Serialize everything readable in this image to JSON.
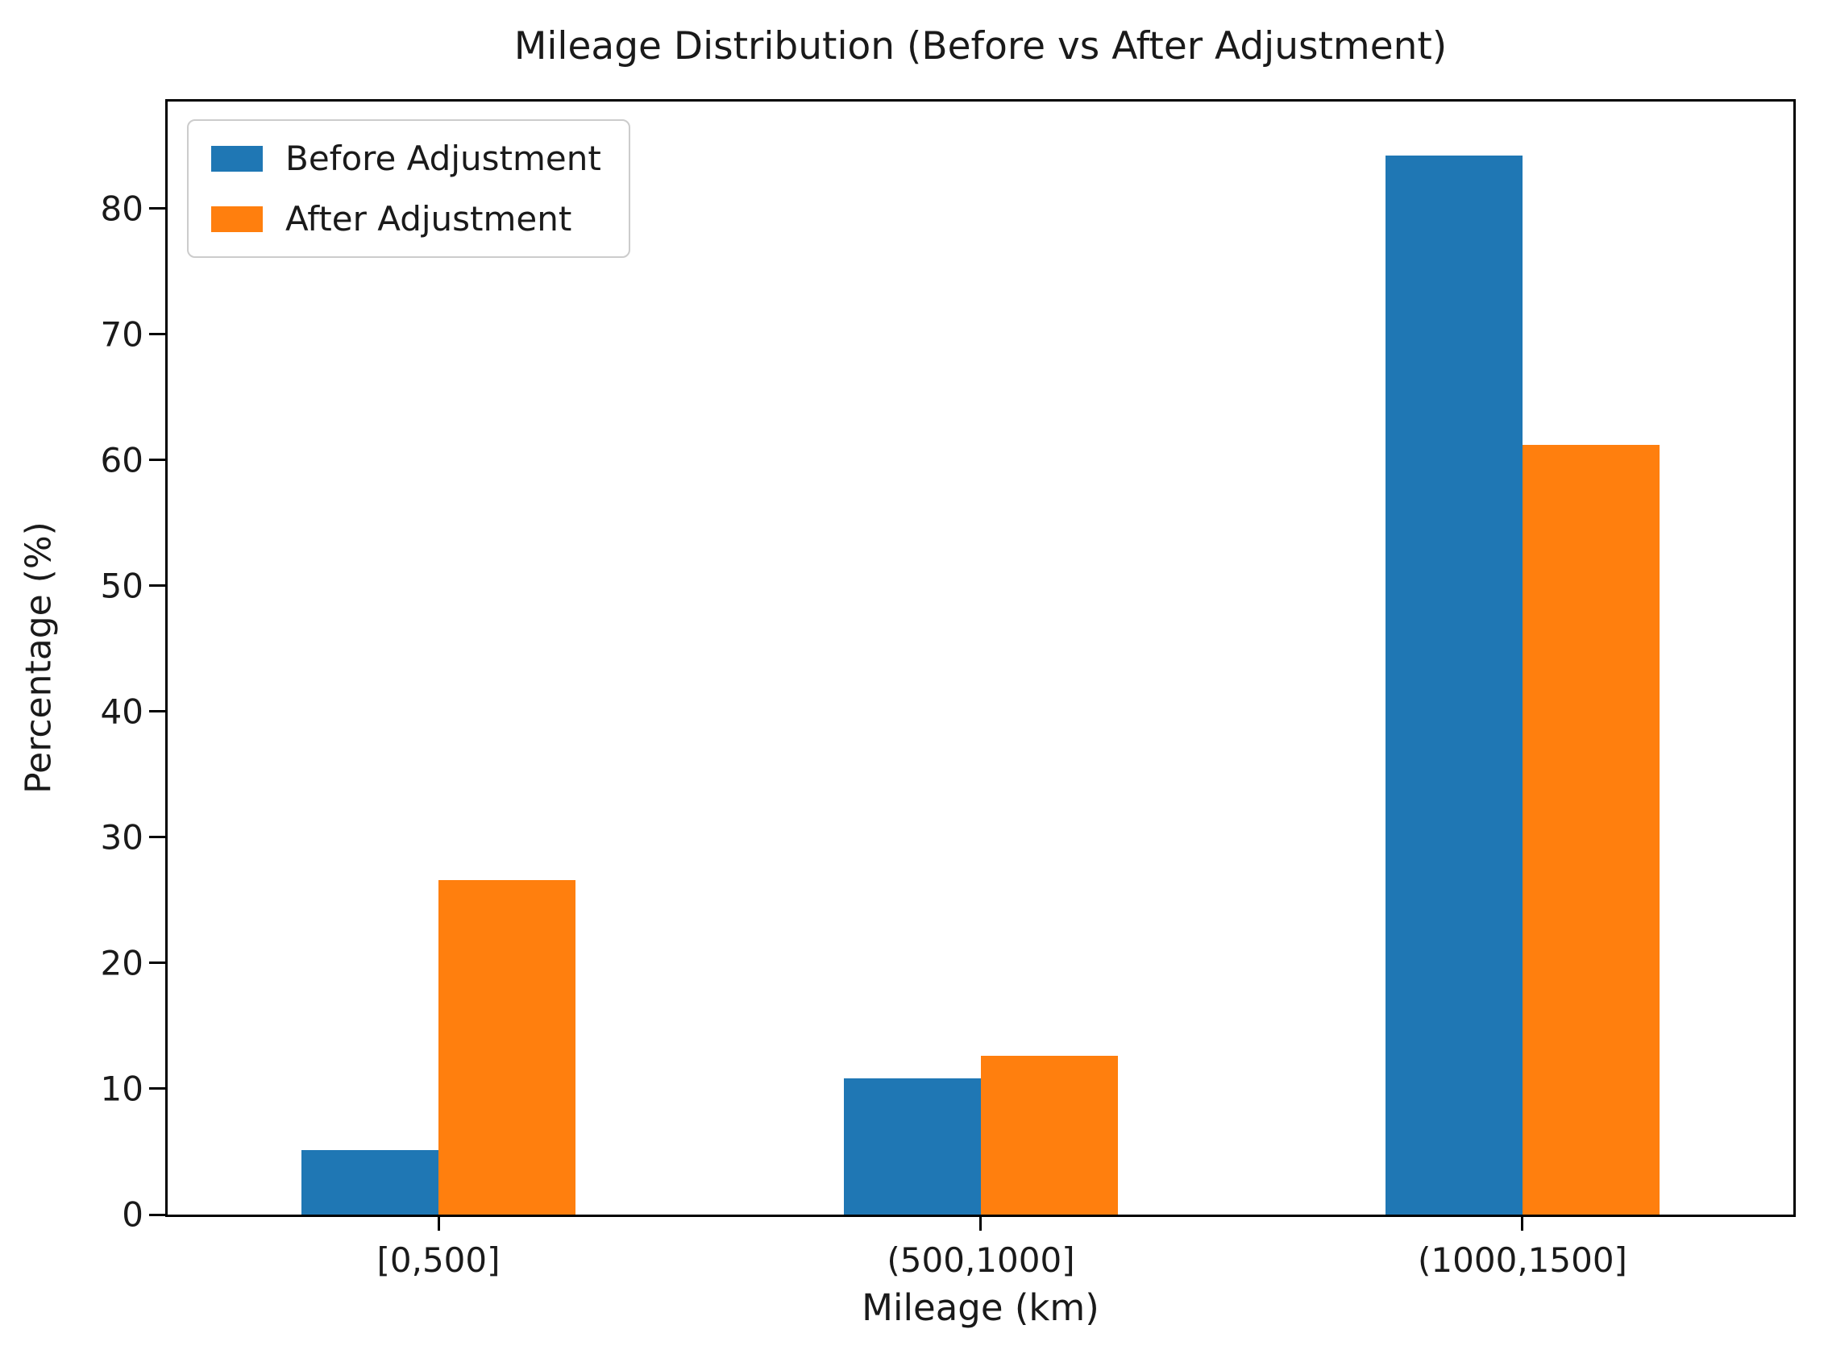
{
  "chart_data": {
    "type": "bar",
    "title": "Mileage Distribution (Before vs After Adjustment)",
    "xlabel": "Mileage (km)",
    "ylabel": "Percentage (%)",
    "categories": [
      "[0,500]",
      "(500,1000]",
      "(1000,1500]"
    ],
    "series": [
      {
        "name": "Before Adjustment",
        "color": "#1f77b4",
        "values": [
          5.1,
          10.8,
          84.2
        ]
      },
      {
        "name": "After Adjustment",
        "color": "#ff7f0e",
        "values": [
          26.6,
          12.6,
          61.2
        ]
      }
    ],
    "ylim": [
      0,
      88.5
    ],
    "yticks": [
      0,
      10,
      20,
      30,
      40,
      50,
      60,
      70,
      80
    ],
    "legend_position": "upper left",
    "grid": false,
    "background_color": "#ffffff",
    "spine_color": "#000000"
  }
}
